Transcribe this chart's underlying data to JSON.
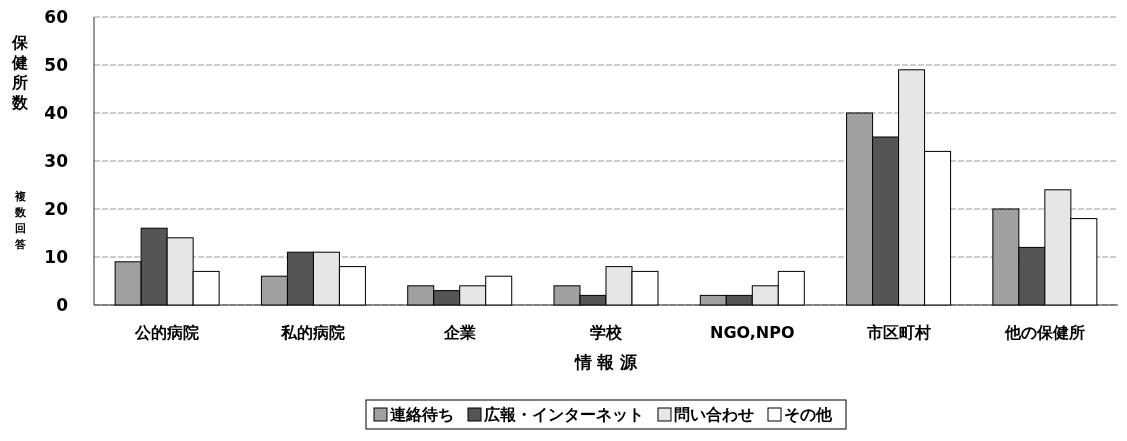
{
  "chart_data": {
    "type": "bar",
    "xlabel": "情 報 源",
    "ylabel": "保健所数",
    "annotations": [
      "複数回答"
    ],
    "categories": [
      "公的病院",
      "私的病院",
      "企業",
      "学校",
      "NGO,NPO",
      "市区町村",
      "他の保健所"
    ],
    "series": [
      {
        "name": "連絡待ち",
        "color": "#a0a0a0",
        "values": [
          9,
          6,
          4,
          4,
          2,
          40,
          20
        ]
      },
      {
        "name": "広報・インターネット",
        "color": "#555555",
        "values": [
          16,
          11,
          3,
          2,
          2,
          35,
          12
        ]
      },
      {
        "name": "問い合わせ",
        "color": "#e6e6e6",
        "values": [
          14,
          11,
          4,
          8,
          4,
          49,
          24
        ]
      },
      {
        "name": "その他",
        "color": "#ffffff",
        "values": [
          7,
          8,
          6,
          7,
          7,
          32,
          18
        ]
      }
    ],
    "ylim": [
      0,
      60
    ],
    "yticks": [
      0,
      10,
      20,
      30,
      40,
      50,
      60
    ],
    "grid": "y",
    "legend": "bottom"
  }
}
